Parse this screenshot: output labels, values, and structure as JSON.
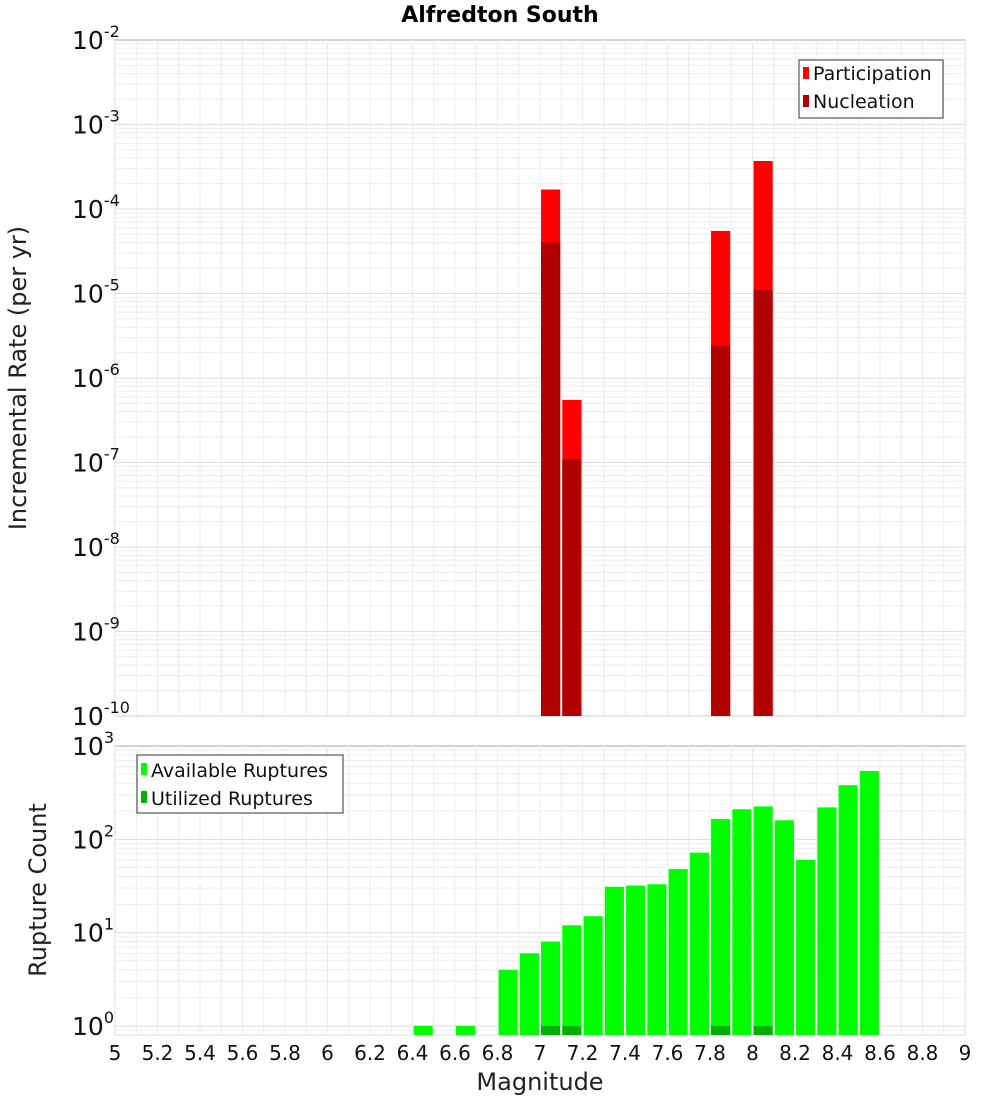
{
  "chart_data": [
    {
      "type": "bar",
      "title": "Alfredton South",
      "ylabel": "Incremental Rate (per yr)",
      "yscale": "log",
      "ylim": [
        1e-10,
        0.01
      ],
      "xlim": [
        5,
        9
      ],
      "bar_width": 0.09,
      "legend_placement": "top-right",
      "y_ticks": [
        {
          "base": "10",
          "exp": "-10",
          "value": 1e-10
        },
        {
          "base": "10",
          "exp": "-9",
          "value": 1e-09
        },
        {
          "base": "10",
          "exp": "-8",
          "value": 1e-08
        },
        {
          "base": "10",
          "exp": "-7",
          "value": 1e-07
        },
        {
          "base": "10",
          "exp": "-6",
          "value": 1e-06
        },
        {
          "base": "10",
          "exp": "-5",
          "value": 1e-05
        },
        {
          "base": "10",
          "exp": "-4",
          "value": 0.0001
        },
        {
          "base": "10",
          "exp": "-3",
          "value": 0.001
        },
        {
          "base": "10",
          "exp": "-2",
          "value": 0.01
        }
      ],
      "series": [
        {
          "name": "Participation",
          "color": "#ff0000",
          "points": [
            {
              "x": 7.05,
              "y": 0.00017
            },
            {
              "x": 7.15,
              "y": 5.5e-07
            },
            {
              "x": 7.85,
              "y": 5.5e-05
            },
            {
              "x": 8.05,
              "y": 0.00037
            }
          ]
        },
        {
          "name": "Nucleation",
          "color": "#b00000",
          "points": [
            {
              "x": 7.05,
              "y": 4e-05
            },
            {
              "x": 7.15,
              "y": 1.1e-07
            },
            {
              "x": 7.85,
              "y": 2.4e-06
            },
            {
              "x": 8.05,
              "y": 1.1e-05
            }
          ]
        }
      ]
    },
    {
      "type": "bar",
      "xlabel": "Magnitude",
      "ylabel": "Rupture Count",
      "yscale": "log",
      "ylim": [
        0.8,
        1000
      ],
      "xlim": [
        5,
        9
      ],
      "bar_width": 0.09,
      "legend_placement": "top-left",
      "x_ticks": [
        "5",
        "5.2",
        "5.4",
        "5.6",
        "5.8",
        "6",
        "6.2",
        "6.4",
        "6.6",
        "6.8",
        "7",
        "7.2",
        "7.4",
        "7.6",
        "7.8",
        "8",
        "8.2",
        "8.4",
        "8.6",
        "8.8",
        "9"
      ],
      "y_ticks": [
        {
          "base": "10",
          "exp": "0",
          "value": 1
        },
        {
          "base": "10",
          "exp": "1",
          "value": 10
        },
        {
          "base": "10",
          "exp": "2",
          "value": 100
        },
        {
          "base": "10",
          "exp": "3",
          "value": 1000
        }
      ],
      "series": [
        {
          "name": "Available Ruptures",
          "color": "#00ff00",
          "points": [
            {
              "x": 6.45,
              "y": 1
            },
            {
              "x": 6.65,
              "y": 1
            },
            {
              "x": 6.85,
              "y": 4
            },
            {
              "x": 6.95,
              "y": 6
            },
            {
              "x": 7.05,
              "y": 8
            },
            {
              "x": 7.15,
              "y": 12
            },
            {
              "x": 7.25,
              "y": 15
            },
            {
              "x": 7.35,
              "y": 31
            },
            {
              "x": 7.45,
              "y": 32
            },
            {
              "x": 7.55,
              "y": 33
            },
            {
              "x": 7.65,
              "y": 48
            },
            {
              "x": 7.75,
              "y": 72
            },
            {
              "x": 7.85,
              "y": 165
            },
            {
              "x": 7.95,
              "y": 210
            },
            {
              "x": 8.05,
              "y": 225
            },
            {
              "x": 8.15,
              "y": 160
            },
            {
              "x": 8.25,
              "y": 60
            },
            {
              "x": 8.35,
              "y": 220
            },
            {
              "x": 8.45,
              "y": 380
            },
            {
              "x": 8.55,
              "y": 540
            }
          ]
        },
        {
          "name": "Utilized Ruptures",
          "color": "#00b000",
          "points": [
            {
              "x": 7.05,
              "y": 1
            },
            {
              "x": 7.15,
              "y": 1
            },
            {
              "x": 7.85,
              "y": 1
            },
            {
              "x": 8.05,
              "y": 1
            }
          ]
        }
      ]
    }
  ]
}
